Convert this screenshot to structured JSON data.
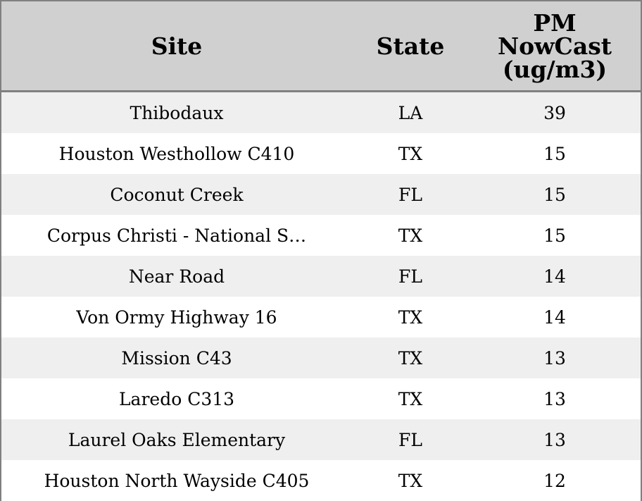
{
  "table": {
    "header": [
      "Site",
      "State",
      "PM NowCast (ug/m3)"
    ],
    "rows": [
      [
        "Thibodaux",
        "LA",
        39
      ],
      [
        "Houston Westhollow C410",
        "TX",
        15
      ],
      [
        "Coconut Creek",
        "FL",
        15
      ],
      [
        "Corpus Christi - National S…",
        "TX",
        15
      ],
      [
        "Near Road",
        "FL",
        14
      ],
      [
        "Von Ormy Highway 16",
        "TX",
        14
      ],
      [
        "Mission C43",
        "TX",
        13
      ],
      [
        "Laredo C313",
        "TX",
        13
      ],
      [
        "Laurel Oaks Elementary",
        "FL",
        13
      ],
      [
        "Houston North Wayside C405",
        "TX",
        12
      ]
    ]
  }
}
